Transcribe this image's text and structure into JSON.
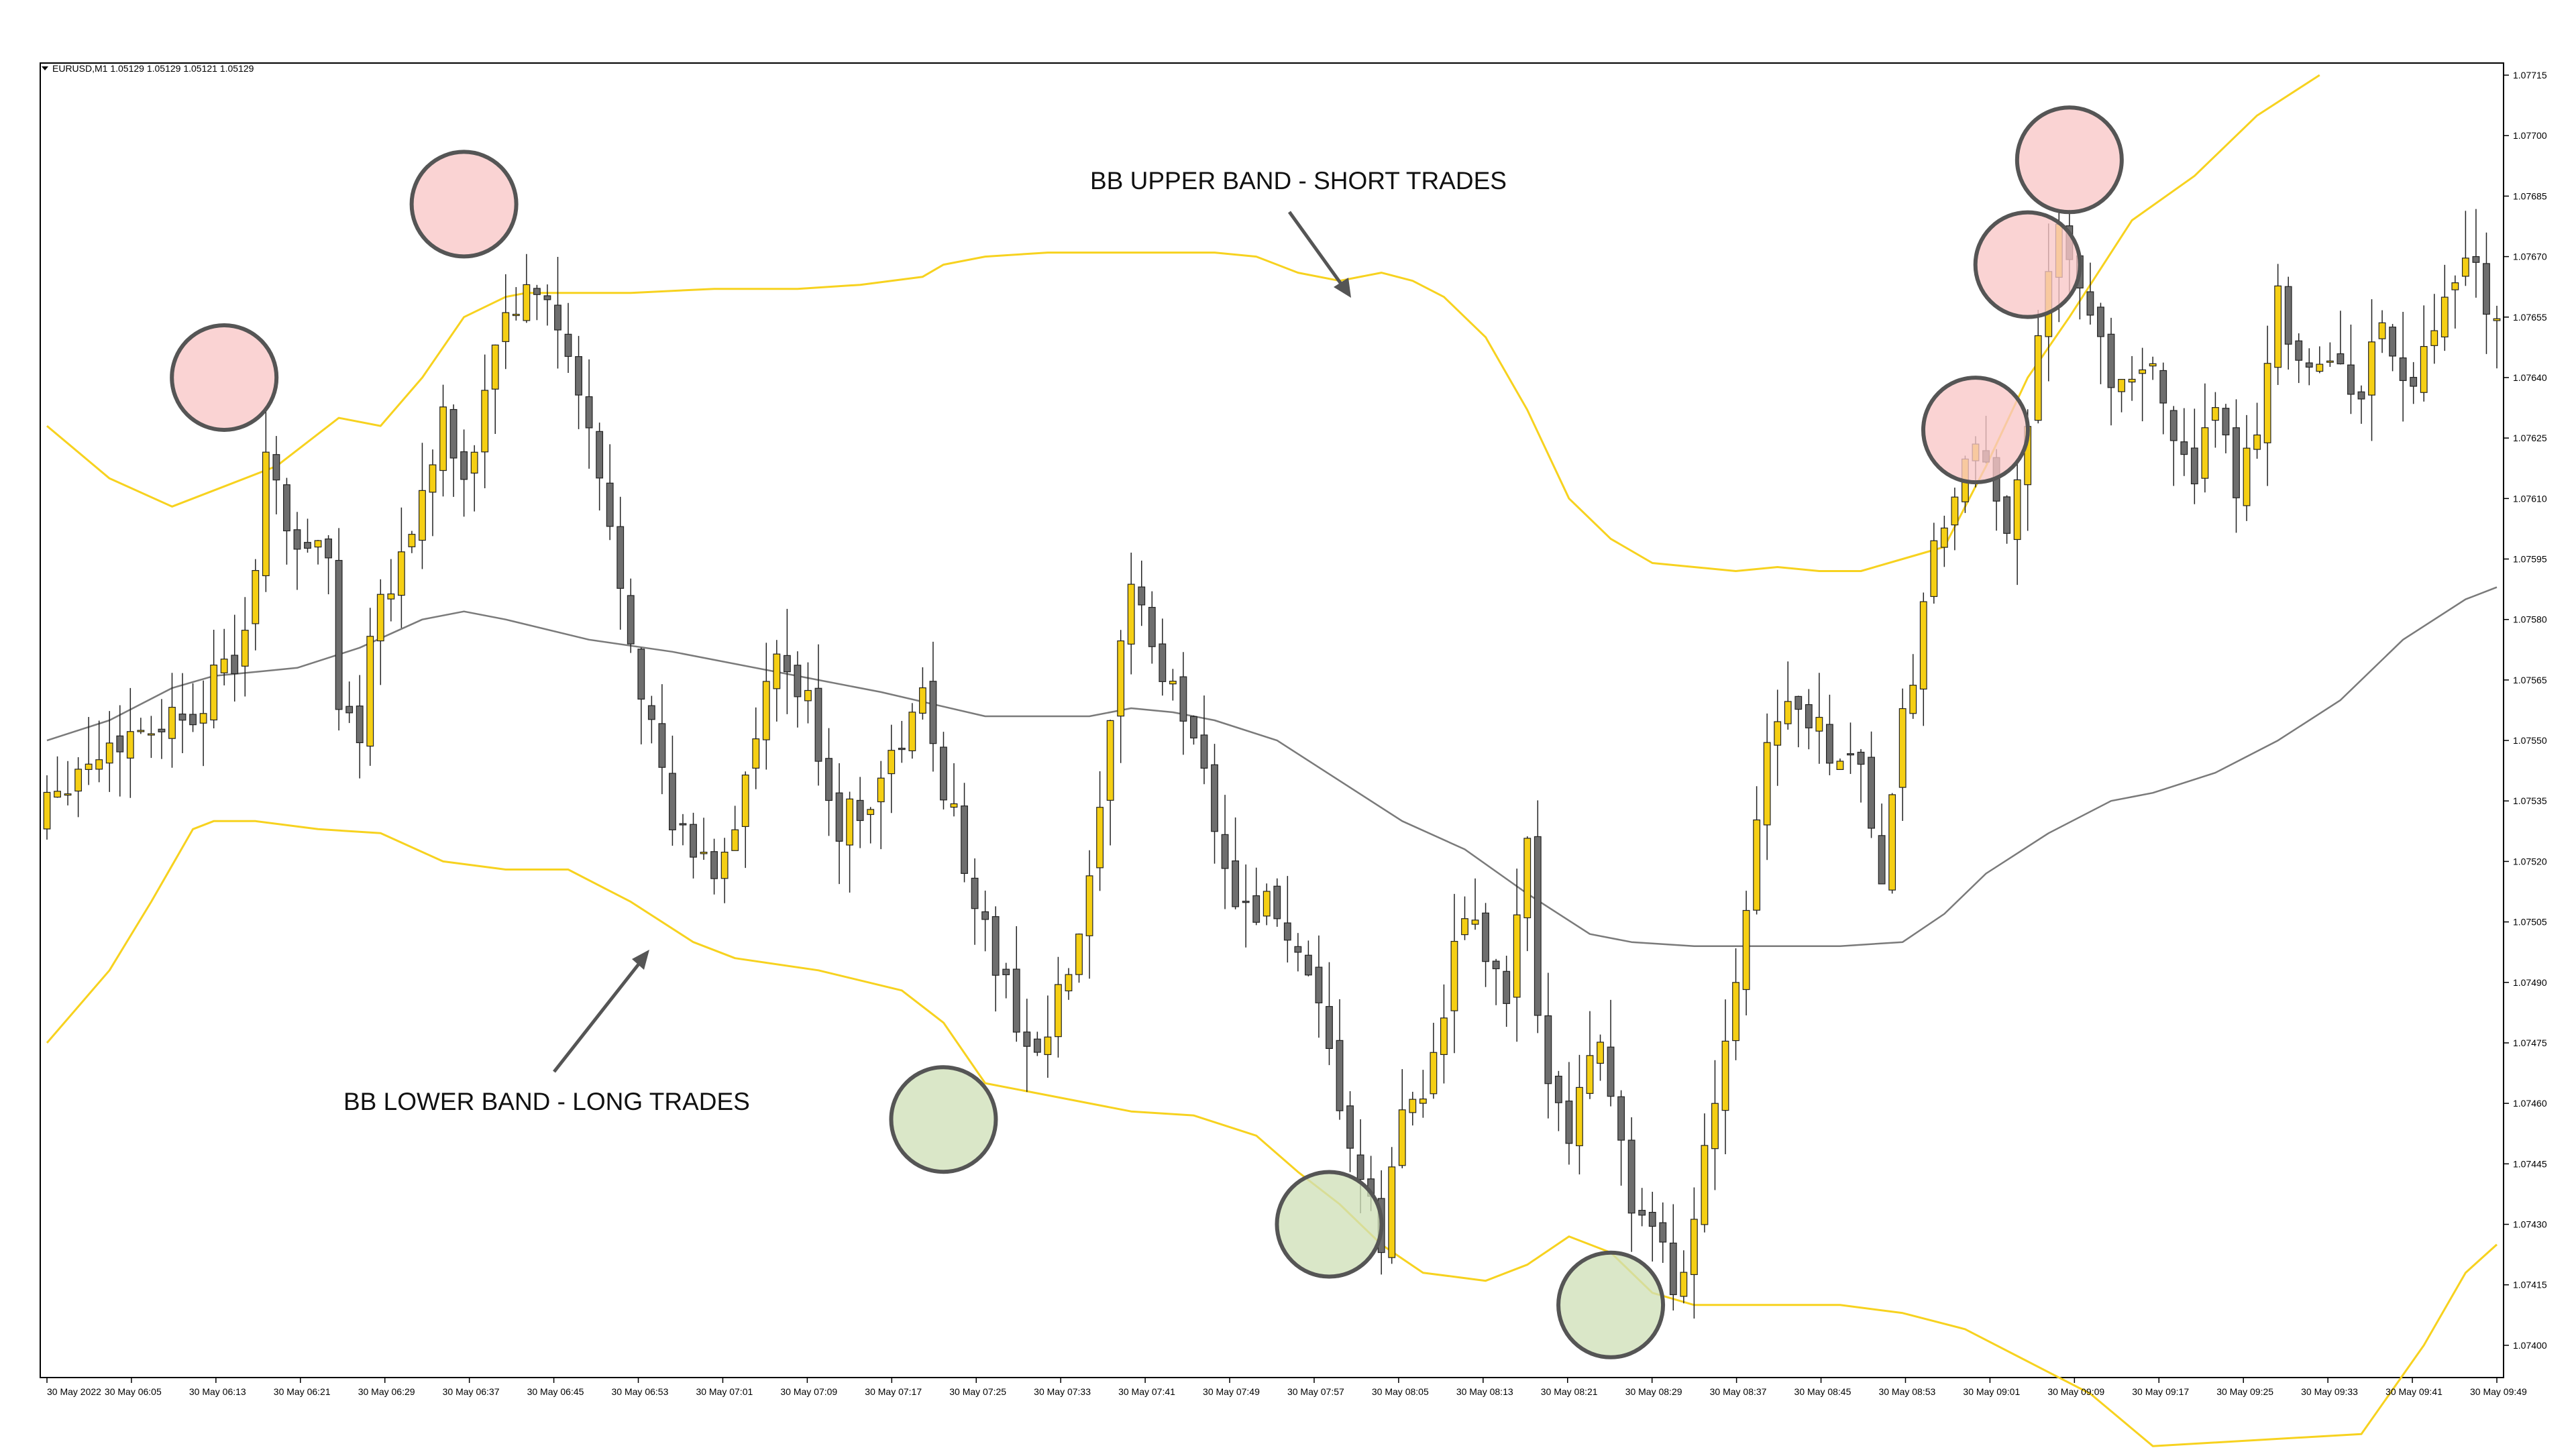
{
  "window": {
    "symbol_label": "EURUSD,M1  1.05129 1.05129 1.05121 1.05129",
    "menu_icon": "triangle-down-icon"
  },
  "annotations": {
    "upper": "BB UPPER BAND - SHORT TRADES",
    "lower": "BB LOWER BAND - LONG TRADES"
  },
  "colors": {
    "bull_candle": "#f5cf14",
    "bear_candle": "#6e6e6e",
    "candle_outline": "#222222",
    "bollinger_band": "#f7d21f",
    "middle_band": "#7a7a7a",
    "short_signal_fill": "#f8c6c6",
    "long_signal_fill": "#cfe0b8",
    "signal_ring": "#555555"
  },
  "chart_data": {
    "type": "candlestick",
    "ylim": [
      1.07392,
      1.07718
    ],
    "y_tick_labels": [
      "1.07715",
      "1.07700",
      "1.07685",
      "1.07670",
      "1.07655",
      "1.07640",
      "1.07625",
      "1.07610",
      "1.07595",
      "1.07580",
      "1.07565",
      "1.07550",
      "1.07535",
      "1.07520",
      "1.07505",
      "1.07490",
      "1.07475",
      "1.07460",
      "1.07445",
      "1.07430",
      "1.07415",
      "1.07400"
    ],
    "x_tick_labels": [
      "30 May 2022",
      "30 May 06:05",
      "30 May 06:13",
      "30 May 06:21",
      "30 May 06:29",
      "30 May 06:37",
      "30 May 06:45",
      "30 May 06:53",
      "30 May 07:01",
      "30 May 07:09",
      "30 May 07:17",
      "30 May 07:25",
      "30 May 07:33",
      "30 May 07:41",
      "30 May 07:49",
      "30 May 07:57",
      "30 May 08:05",
      "30 May 08:13",
      "30 May 08:21",
      "30 May 08:29",
      "30 May 08:37",
      "30 May 08:45",
      "30 May 08:53",
      "30 May 09:01",
      "30 May 09:09",
      "30 May 09:17",
      "30 May 09:25",
      "30 May 09:33",
      "30 May 09:41",
      "30 May 09:49"
    ],
    "candle_count": 236,
    "close_anchors": [
      [
        0,
        1.07538
      ],
      [
        8,
        1.07552
      ],
      [
        14,
        1.07558
      ],
      [
        19,
        1.07573
      ],
      [
        21,
        1.0762
      ],
      [
        23,
        1.07602
      ],
      [
        27,
        1.07595
      ],
      [
        28,
        1.0756
      ],
      [
        30,
        1.07552
      ],
      [
        31,
        1.0758
      ],
      [
        35,
        1.07602
      ],
      [
        38,
        1.0763
      ],
      [
        40,
        1.0761
      ],
      [
        43,
        1.0765
      ],
      [
        45,
        1.07658
      ],
      [
        48,
        1.0766
      ],
      [
        50,
        1.07643
      ],
      [
        52,
        1.07625
      ],
      [
        55,
        1.0759
      ],
      [
        57,
        1.07565
      ],
      [
        60,
        1.07528
      ],
      [
        64,
        1.07518
      ],
      [
        66,
        1.0753
      ],
      [
        70,
        1.0757
      ],
      [
        73,
        1.07558
      ],
      [
        76,
        1.07528
      ],
      [
        80,
        1.0754
      ],
      [
        84,
        1.0756
      ],
      [
        88,
        1.0752
      ],
      [
        91,
        1.07494
      ],
      [
        95,
        1.0747
      ],
      [
        98,
        1.07492
      ],
      [
        100,
        1.07512
      ],
      [
        102,
        1.0755
      ],
      [
        104,
        1.07592
      ],
      [
        107,
        1.07565
      ],
      [
        110,
        1.07553
      ],
      [
        114,
        1.0751
      ],
      [
        118,
        1.07508
      ],
      [
        122,
        1.0748
      ],
      [
        126,
        1.0744
      ],
      [
        128,
        1.07425
      ],
      [
        130,
        1.07458
      ],
      [
        133,
        1.0747
      ],
      [
        136,
        1.07508
      ],
      [
        140,
        1.07485
      ],
      [
        142,
        1.07522
      ],
      [
        143,
        1.07477
      ],
      [
        146,
        1.07455
      ],
      [
        149,
        1.07478
      ],
      [
        152,
        1.07435
      ],
      [
        154,
        1.07425
      ],
      [
        155,
        1.07422
      ],
      [
        156,
        1.07412
      ],
      [
        158,
        1.0743
      ],
      [
        159,
        1.0745
      ],
      [
        161,
        1.07478
      ],
      [
        163,
        1.0751
      ],
      [
        165,
        1.07553
      ],
      [
        168,
        1.0756
      ],
      [
        171,
        1.07548
      ],
      [
        174,
        1.07545
      ],
      [
        176,
        1.07515
      ],
      [
        178,
        1.07553
      ],
      [
        181,
        1.07595
      ],
      [
        183,
        1.07612
      ],
      [
        185,
        1.0762
      ],
      [
        188,
        1.07605
      ],
      [
        190,
        1.0763
      ],
      [
        192,
        1.07662
      ],
      [
        193,
        1.07682
      ],
      [
        194,
        1.07665
      ],
      [
        196,
        1.07655
      ],
      [
        198,
        1.0764
      ],
      [
        201,
        1.07645
      ],
      [
        203,
        1.07632
      ],
      [
        206,
        1.07618
      ],
      [
        208,
        1.07628
      ],
      [
        210,
        1.07614
      ],
      [
        212,
        1.0763
      ],
      [
        214,
        1.0766
      ],
      [
        216,
        1.07646
      ],
      [
        219,
        1.07642
      ],
      [
        222,
        1.07638
      ],
      [
        224,
        1.07652
      ],
      [
        227,
        1.07636
      ],
      [
        229,
        1.0765
      ],
      [
        232,
        1.07668
      ],
      [
        234,
        1.0766
      ],
      [
        235,
        1.0765
      ]
    ],
    "bollinger_upper": [
      [
        0,
        1.07628
      ],
      [
        6,
        1.07615
      ],
      [
        12,
        1.07608
      ],
      [
        16,
        1.07612
      ],
      [
        22,
        1.07618
      ],
      [
        28,
        1.0763
      ],
      [
        32,
        1.07628
      ],
      [
        36,
        1.0764
      ],
      [
        40,
        1.07655
      ],
      [
        44,
        1.0766
      ],
      [
        46,
        1.07661
      ],
      [
        50,
        1.07661
      ],
      [
        56,
        1.07661
      ],
      [
        64,
        1.07662
      ],
      [
        72,
        1.07662
      ],
      [
        78,
        1.07663
      ],
      [
        84,
        1.07665
      ],
      [
        86,
        1.07668
      ],
      [
        90,
        1.0767
      ],
      [
        96,
        1.07671
      ],
      [
        102,
        1.07671
      ],
      [
        108,
        1.07671
      ],
      [
        112,
        1.07671
      ],
      [
        116,
        1.0767
      ],
      [
        120,
        1.07666
      ],
      [
        124,
        1.07664
      ],
      [
        128,
        1.07666
      ],
      [
        131,
        1.07664
      ],
      [
        134,
        1.0766
      ],
      [
        138,
        1.0765
      ],
      [
        142,
        1.07632
      ],
      [
        146,
        1.0761
      ],
      [
        150,
        1.076
      ],
      [
        154,
        1.07594
      ],
      [
        158,
        1.07593
      ],
      [
        162,
        1.07592
      ],
      [
        166,
        1.07593
      ],
      [
        170,
        1.07592
      ],
      [
        174,
        1.07592
      ],
      [
        178,
        1.07595
      ],
      [
        182,
        1.07598
      ],
      [
        186,
        1.07618
      ],
      [
        190,
        1.0764
      ],
      [
        194,
        1.07655
      ],
      [
        200,
        1.07679
      ],
      [
        206,
        1.0769
      ],
      [
        212,
        1.07705
      ],
      [
        218,
        1.07715
      ]
    ],
    "bollinger_middle": [
      [
        0,
        1.0755
      ],
      [
        6,
        1.07555
      ],
      [
        12,
        1.07563
      ],
      [
        16,
        1.07566
      ],
      [
        24,
        1.07568
      ],
      [
        30,
        1.07573
      ],
      [
        36,
        1.0758
      ],
      [
        40,
        1.07582
      ],
      [
        44,
        1.0758
      ],
      [
        52,
        1.07575
      ],
      [
        60,
        1.07572
      ],
      [
        70,
        1.07567
      ],
      [
        80,
        1.07562
      ],
      [
        90,
        1.07556
      ],
      [
        100,
        1.07556
      ],
      [
        104,
        1.07558
      ],
      [
        108,
        1.07557
      ],
      [
        112,
        1.07555
      ],
      [
        118,
        1.0755
      ],
      [
        124,
        1.0754
      ],
      [
        130,
        1.0753
      ],
      [
        136,
        1.07523
      ],
      [
        142,
        1.07512
      ],
      [
        148,
        1.07502
      ],
      [
        152,
        1.075
      ],
      [
        158,
        1.07499
      ],
      [
        166,
        1.07499
      ],
      [
        172,
        1.07499
      ],
      [
        178,
        1.075
      ],
      [
        182,
        1.07507
      ],
      [
        186,
        1.07517
      ],
      [
        192,
        1.07527
      ],
      [
        198,
        1.07535
      ],
      [
        202,
        1.07537
      ],
      [
        208,
        1.07542
      ],
      [
        214,
        1.0755
      ],
      [
        220,
        1.0756
      ],
      [
        226,
        1.07575
      ],
      [
        232,
        1.07585
      ],
      [
        235,
        1.07588
      ]
    ],
    "bollinger_lower": [
      [
        0,
        1.07475
      ],
      [
        6,
        1.07493
      ],
      [
        10,
        1.0751
      ],
      [
        14,
        1.07528
      ],
      [
        16,
        1.0753
      ],
      [
        20,
        1.0753
      ],
      [
        26,
        1.07528
      ],
      [
        32,
        1.07527
      ],
      [
        38,
        1.0752
      ],
      [
        44,
        1.07518
      ],
      [
        50,
        1.07518
      ],
      [
        56,
        1.0751
      ],
      [
        62,
        1.075
      ],
      [
        66,
        1.07496
      ],
      [
        74,
        1.07493
      ],
      [
        82,
        1.07488
      ],
      [
        86,
        1.0748
      ],
      [
        90,
        1.07465
      ],
      [
        96,
        1.07462
      ],
      [
        104,
        1.07458
      ],
      [
        110,
        1.07457
      ],
      [
        116,
        1.07452
      ],
      [
        120,
        1.07443
      ],
      [
        124,
        1.07435
      ],
      [
        128,
        1.07425
      ],
      [
        132,
        1.07418
      ],
      [
        138,
        1.07416
      ],
      [
        142,
        1.0742
      ],
      [
        146,
        1.07427
      ],
      [
        150,
        1.07423
      ],
      [
        154,
        1.07413
      ],
      [
        158,
        1.0741
      ],
      [
        164,
        1.0741
      ],
      [
        172,
        1.0741
      ],
      [
        178,
        1.07408
      ],
      [
        184,
        1.07404
      ],
      [
        190,
        1.07396
      ],
      [
        196,
        1.07388
      ],
      [
        202,
        1.07375
      ],
      [
        222,
        1.07378
      ],
      [
        228,
        1.074
      ],
      [
        232,
        1.07418
      ],
      [
        235,
        1.07425
      ]
    ],
    "short_signals": [
      [
        17,
        1.0764
      ],
      [
        40,
        1.07683
      ],
      [
        185,
        1.07627
      ],
      [
        190,
        1.07668
      ],
      [
        194,
        1.07694
      ]
    ],
    "long_signals": [
      [
        86,
        1.07456
      ],
      [
        123,
        1.0743
      ],
      [
        150,
        1.0741
      ]
    ]
  }
}
